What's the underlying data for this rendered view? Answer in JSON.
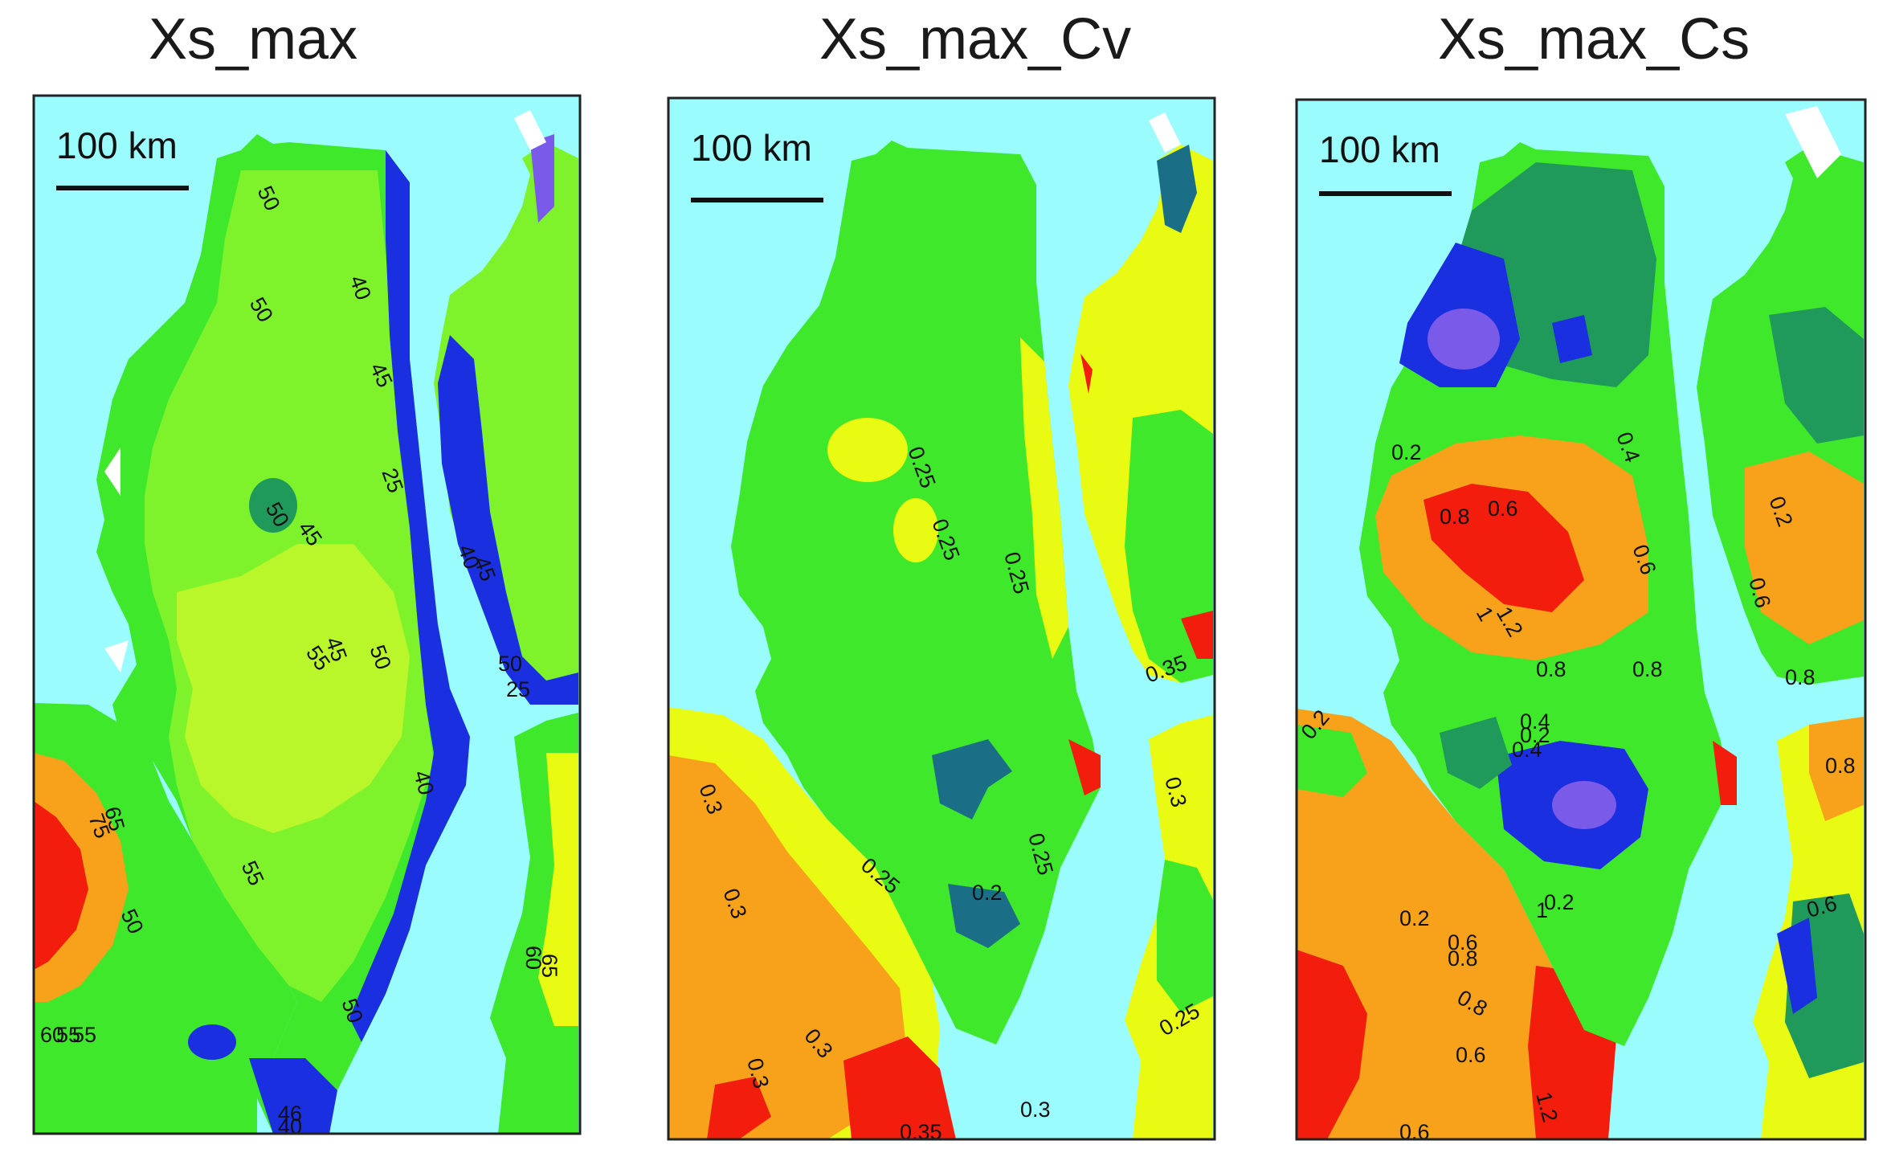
{
  "panels": [
    {
      "title": "Xs_max",
      "scale_bar": "100 km",
      "contour_labels": [
        "50",
        "45",
        "40",
        "45",
        "50",
        "45",
        "55",
        "50",
        "55",
        "50",
        "75",
        "65",
        "60",
        "55",
        "50",
        "50",
        "40",
        "45",
        "50",
        "25",
        "60",
        "40",
        "46",
        "40",
        "65",
        "55",
        "25"
      ]
    },
    {
      "title": "Xs_max_Cv",
      "scale_bar": "100 km",
      "contour_labels": [
        "0.25",
        "0.25",
        "0.25",
        "0.3",
        "0.3",
        "0.25",
        "0.2",
        "0.25",
        "0.3",
        "0.3",
        "0.3",
        "0.35",
        "0.3",
        "0.35",
        "0.25"
      ]
    },
    {
      "title": "Xs_max_Cs",
      "scale_bar": "100 km",
      "contour_labels": [
        "0.2",
        "0.4",
        "0.6",
        "0.8",
        "0.6",
        "1",
        "1.2",
        "0.8",
        "0.4",
        "0.2",
        "0.2",
        "0.6",
        "0.8",
        "0.2",
        "1",
        "0.6",
        "0.8",
        "0.8",
        "0.6",
        "1.2",
        "0.6",
        "0.8",
        "0.2",
        "0.2",
        "0.4",
        "0.6",
        "0.8"
      ]
    }
  ],
  "colors": {
    "water": "#9bfcfd",
    "green": "#3fe82b",
    "light_green": "#7ef32c",
    "yellow_green": "#b9f72a",
    "yellow": "#e9fb12",
    "orange": "#f7a21a",
    "red": "#f21d0c",
    "dark_green": "#1f9a5a",
    "teal": "#1a6f86",
    "blue": "#1a2fe0",
    "purple": "#7a5ae8",
    "white": "#ffffff"
  }
}
